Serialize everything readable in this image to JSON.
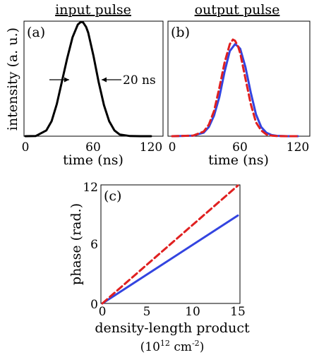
{
  "chart_data": [
    {
      "type": "line",
      "panel_label": "(a)",
      "title": "input pulse",
      "xlabel": "time (ns)",
      "ylabel": "intensity (a. u.)",
      "xlim": [
        0,
        120
      ],
      "xticks": [
        "0",
        "60",
        "120"
      ],
      "annotation": "20 ns",
      "series": [
        {
          "color": "#000000",
          "style": "solid",
          "x": [
            0,
            10,
            20,
            25,
            30,
            35,
            40,
            45,
            50,
            53,
            55,
            58,
            60,
            65,
            70,
            75,
            80,
            85,
            90,
            100,
            110,
            120
          ],
          "y": [
            0.0,
            0.002,
            0.05,
            0.13,
            0.28,
            0.48,
            0.68,
            0.86,
            0.97,
            1.0,
            0.99,
            0.95,
            0.9,
            0.7,
            0.47,
            0.27,
            0.13,
            0.05,
            0.015,
            0.001,
            0.0,
            0.0
          ]
        }
      ]
    },
    {
      "type": "line",
      "panel_label": "(b)",
      "title": "output pulse",
      "xlabel": "time (ns)",
      "xlim": [
        0,
        120
      ],
      "xticks": [
        "0",
        "60",
        "120"
      ],
      "series": [
        {
          "color": "#3344e0",
          "style": "solid",
          "x": [
            0,
            20,
            30,
            35,
            40,
            45,
            50,
            55,
            60,
            63,
            65,
            70,
            75,
            80,
            85,
            90,
            95,
            100,
            110,
            120
          ],
          "y": [
            0.0,
            0.005,
            0.03,
            0.08,
            0.18,
            0.34,
            0.56,
            0.74,
            0.8,
            0.78,
            0.76,
            0.6,
            0.38,
            0.19,
            0.08,
            0.03,
            0.01,
            0.003,
            0.0,
            0.0
          ]
        },
        {
          "color": "#e02020",
          "style": "dashed",
          "x": [
            0,
            20,
            30,
            35,
            40,
            45,
            50,
            55,
            58,
            60,
            63,
            65,
            70,
            75,
            80,
            85,
            90,
            95,
            100,
            110,
            120
          ],
          "y": [
            0.0,
            0.005,
            0.04,
            0.1,
            0.22,
            0.42,
            0.64,
            0.8,
            0.84,
            0.83,
            0.78,
            0.72,
            0.5,
            0.28,
            0.12,
            0.05,
            0.015,
            0.005,
            0.001,
            0.0,
            0.0
          ]
        }
      ]
    },
    {
      "type": "line",
      "panel_label": "(c)",
      "xlabel": "density-length product",
      "xlabel_unit_base": "(10",
      "xlabel_unit_exp": "12",
      "xlabel_unit_mid": " cm",
      "xlabel_unit_exp2": "-2",
      "xlabel_unit_end": ")",
      "ylabel": "phase (rad.)",
      "xlim": [
        0,
        15
      ],
      "ylim": [
        0,
        12
      ],
      "xticks": [
        "0",
        "5",
        "10",
        "15"
      ],
      "yticks": [
        "0",
        "6",
        "12"
      ],
      "series": [
        {
          "color": "#3344e0",
          "style": "solid",
          "x": [
            0,
            15
          ],
          "y": [
            0,
            8.9
          ]
        },
        {
          "color": "#e02020",
          "style": "dashed",
          "x": [
            0,
            15
          ],
          "y": [
            0,
            12.4
          ]
        }
      ]
    }
  ]
}
